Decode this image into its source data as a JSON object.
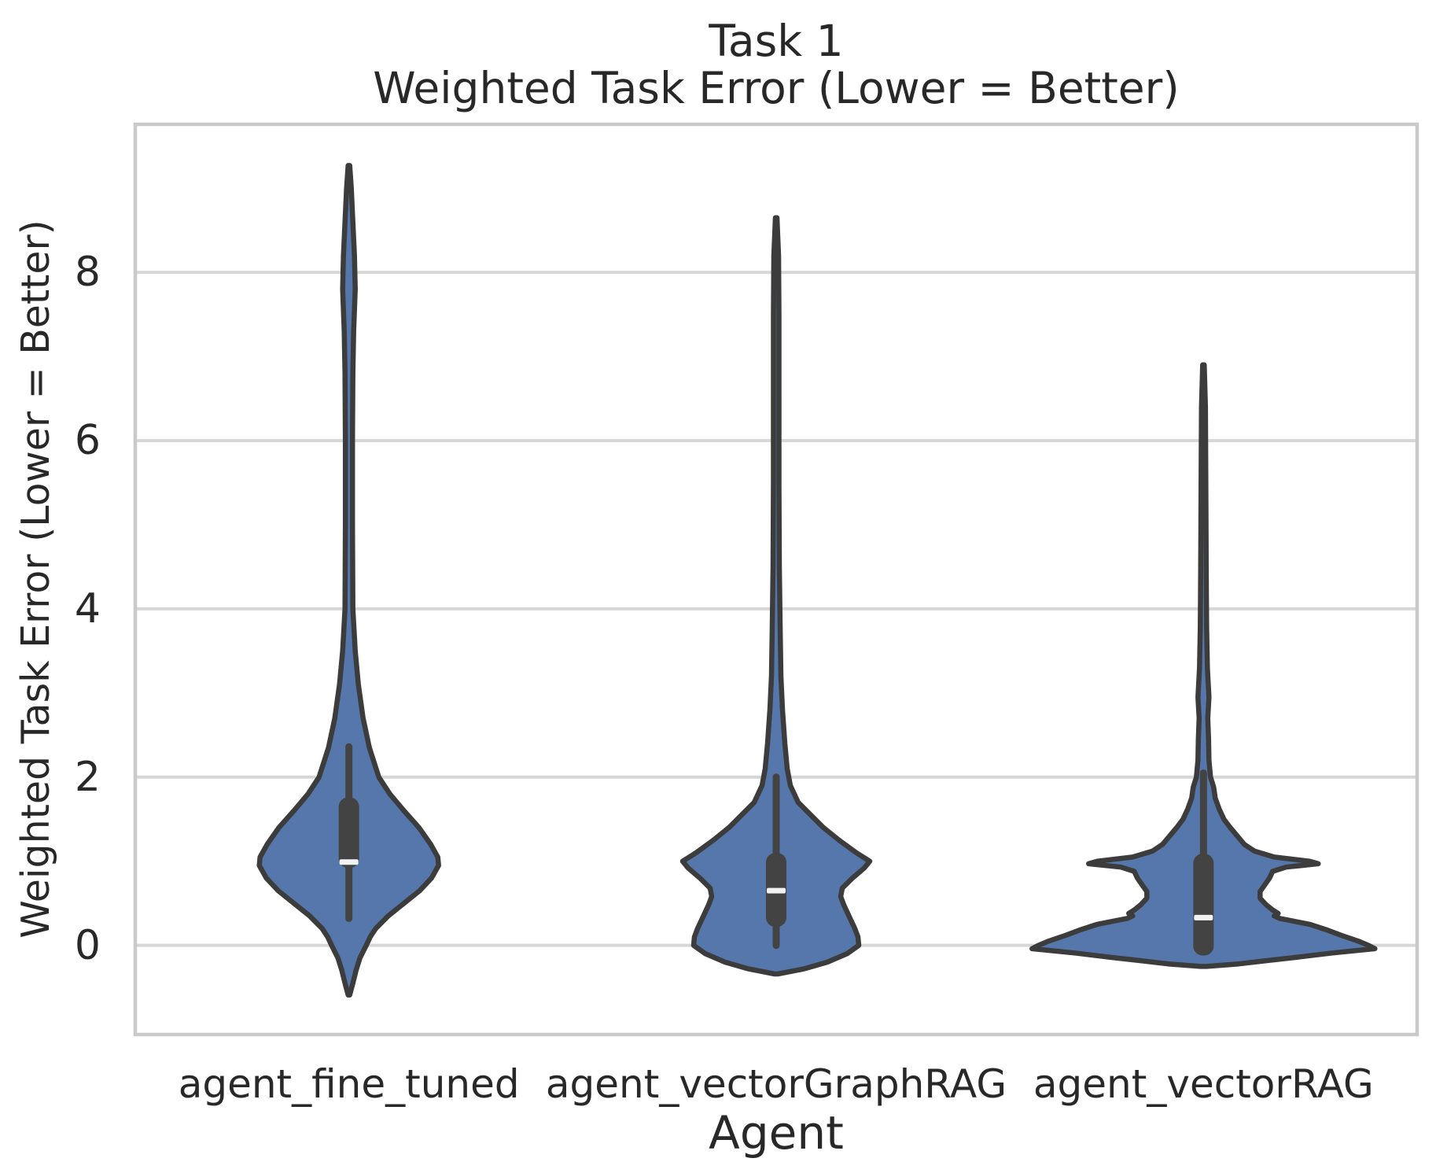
{
  "figure": {
    "title_line1": "Task 1",
    "title_line2": "Weighted Task Error (Lower = Better)",
    "xlabel": "Agent",
    "ylabel": "Weighted Task Error (Lower = Better)"
  },
  "chart_data": {
    "type": "violin",
    "title": "Task 1\nWeighted Task Error (Lower = Better)",
    "xlabel": "Agent",
    "ylabel": "Weighted Task Error (Lower = Better)",
    "categories": [
      "agent_fine_tuned",
      "agent_vectorGraphRAG",
      "agent_vectorRAG"
    ],
    "yticks": [
      0,
      2,
      4,
      6,
      8
    ],
    "yticklabels": [
      "0",
      "2",
      "4",
      "6",
      "8"
    ],
    "ylim": [
      -1.06,
      9.76
    ],
    "grid": "horizontal-only",
    "legend": "none",
    "colors": {
      "violin_fill": "#5577ab",
      "violin_edge": "#3c3c3c",
      "box": "#434343",
      "median": "#f2f2f2",
      "grid_line": "#d6d6d6",
      "frame": "#c9c9c9",
      "text": "#282828"
    },
    "series": [
      {
        "name": "agent_fine_tuned",
        "summary": {
          "tail_low": -0.59,
          "tail_high": 9.27,
          "whisker_low": 0.32,
          "whisker_high": 2.36,
          "box_low": 0.92,
          "box_high": 1.76,
          "median": 0.99
        },
        "profile": [
          [
            9.27,
            1
          ],
          [
            9.0,
            3
          ],
          [
            8.6,
            5
          ],
          [
            8.2,
            7
          ],
          [
            7.8,
            8
          ],
          [
            7.3,
            6
          ],
          [
            6.8,
            5
          ],
          [
            6.0,
            4.5
          ],
          [
            5.0,
            4.5
          ],
          [
            4.0,
            5
          ],
          [
            3.5,
            8
          ],
          [
            3.1,
            12
          ],
          [
            2.7,
            18
          ],
          [
            2.35,
            26
          ],
          [
            2.0,
            38
          ],
          [
            1.8,
            52
          ],
          [
            1.6,
            70
          ],
          [
            1.4,
            89
          ],
          [
            1.2,
            104
          ],
          [
            1.05,
            113
          ],
          [
            0.95,
            114
          ],
          [
            0.8,
            105
          ],
          [
            0.65,
            90
          ],
          [
            0.5,
            70
          ],
          [
            0.35,
            50
          ],
          [
            0.2,
            34
          ],
          [
            0.1,
            27
          ],
          [
            0.0,
            22
          ],
          [
            -0.15,
            14
          ],
          [
            -0.3,
            9
          ],
          [
            -0.45,
            5
          ],
          [
            -0.59,
            1
          ]
        ]
      },
      {
        "name": "agent_vectorGraphRAG",
        "summary": {
          "tail_low": -0.34,
          "tail_high": 8.65,
          "whisker_low": 0.0,
          "whisker_high": 2.0,
          "box_low": 0.22,
          "box_high": 1.1,
          "median": 0.65
        },
        "profile": [
          [
            8.65,
            1
          ],
          [
            8.2,
            3
          ],
          [
            7.5,
            3.5
          ],
          [
            6.5,
            3.5
          ],
          [
            5.5,
            3.5
          ],
          [
            4.5,
            4
          ],
          [
            3.8,
            5
          ],
          [
            3.2,
            6
          ],
          [
            2.8,
            8
          ],
          [
            2.4,
            11
          ],
          [
            2.1,
            14
          ],
          [
            1.9,
            18
          ],
          [
            1.7,
            28
          ],
          [
            1.55,
            44
          ],
          [
            1.4,
            60
          ],
          [
            1.25,
            80
          ],
          [
            1.1,
            102
          ],
          [
            1.0,
            119
          ],
          [
            0.92,
            112
          ],
          [
            0.8,
            97
          ],
          [
            0.68,
            84
          ],
          [
            0.58,
            82
          ],
          [
            0.48,
            86
          ],
          [
            0.4,
            90
          ],
          [
            0.3,
            95
          ],
          [
            0.2,
            100
          ],
          [
            0.1,
            104
          ],
          [
            0.0,
            105
          ],
          [
            -0.1,
            90
          ],
          [
            -0.2,
            65
          ],
          [
            -0.28,
            35
          ],
          [
            -0.34,
            2
          ]
        ]
      },
      {
        "name": "agent_vectorRAG",
        "summary": {
          "tail_low": -0.25,
          "tail_high": 6.9,
          "whisker_low": 0.0,
          "whisker_high": 2.05,
          "box_low": -0.12,
          "box_high": 1.09,
          "median": 0.33
        },
        "profile": [
          [
            6.9,
            1
          ],
          [
            6.4,
            2.5
          ],
          [
            5.5,
            3
          ],
          [
            4.5,
            3.5
          ],
          [
            3.8,
            4
          ],
          [
            3.3,
            5
          ],
          [
            2.95,
            7
          ],
          [
            2.7,
            5.5
          ],
          [
            2.45,
            6.5
          ],
          [
            2.2,
            7
          ],
          [
            2.0,
            9
          ],
          [
            1.88,
            13
          ],
          [
            1.75,
            15
          ],
          [
            1.62,
            20
          ],
          [
            1.5,
            26
          ],
          [
            1.4,
            34
          ],
          [
            1.3,
            43
          ],
          [
            1.2,
            52
          ],
          [
            1.12,
            65
          ],
          [
            1.05,
            90
          ],
          [
            1.0,
            135
          ],
          [
            0.97,
            146
          ],
          [
            0.93,
            105
          ],
          [
            0.88,
            88
          ],
          [
            0.8,
            84
          ],
          [
            0.72,
            78
          ],
          [
            0.64,
            72
          ],
          [
            0.56,
            72
          ],
          [
            0.48,
            80
          ],
          [
            0.42,
            88
          ],
          [
            0.38,
            95
          ],
          [
            0.35,
            90
          ],
          [
            0.32,
            97
          ],
          [
            0.3,
            108
          ],
          [
            0.25,
            135
          ],
          [
            0.18,
            158
          ],
          [
            0.12,
            175
          ],
          [
            0.05,
            197
          ],
          [
            0.0,
            210
          ],
          [
            -0.04,
            218
          ],
          [
            -0.09,
            164
          ],
          [
            -0.14,
            120
          ],
          [
            -0.18,
            82
          ],
          [
            -0.22,
            45
          ],
          [
            -0.25,
            4
          ]
        ]
      }
    ]
  }
}
